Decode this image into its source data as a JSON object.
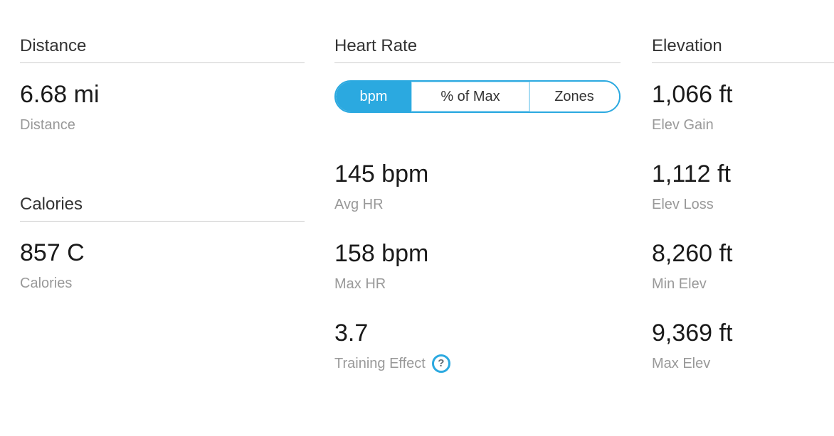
{
  "colors": {
    "accent_blue": "#2BA9E0",
    "header_text": "#333333",
    "value_text": "#1a1a1a",
    "label_text": "#999999",
    "divider": "#cccccc"
  },
  "left_column": {
    "sections": [
      {
        "header": "Distance",
        "metric": {
          "value": "6.68 mi",
          "label": "Distance"
        }
      },
      {
        "header": "Calories",
        "metric": {
          "value": "857 C",
          "label": "Calories"
        }
      }
    ]
  },
  "middle_column": {
    "header": "Heart Rate",
    "toggle": {
      "options": [
        {
          "label": "bpm",
          "selected": true
        },
        {
          "label": "% of Max",
          "selected": false
        },
        {
          "label": "Zones",
          "selected": false
        }
      ]
    },
    "metrics": [
      {
        "value": "145 bpm",
        "label": "Avg HR"
      },
      {
        "value": "158 bpm",
        "label": "Max HR"
      },
      {
        "value": "3.7",
        "label": "Training Effect",
        "help_icon": "question-circle-icon",
        "help_glyph": "?"
      }
    ]
  },
  "right_column": {
    "header": "Elevation",
    "metrics": [
      {
        "value": "1,066 ft",
        "label": "Elev Gain"
      },
      {
        "value": "1,112 ft",
        "label": "Elev Loss"
      },
      {
        "value": "8,260 ft",
        "label": "Min Elev"
      },
      {
        "value": "9,369 ft",
        "label": "Max Elev"
      }
    ]
  }
}
